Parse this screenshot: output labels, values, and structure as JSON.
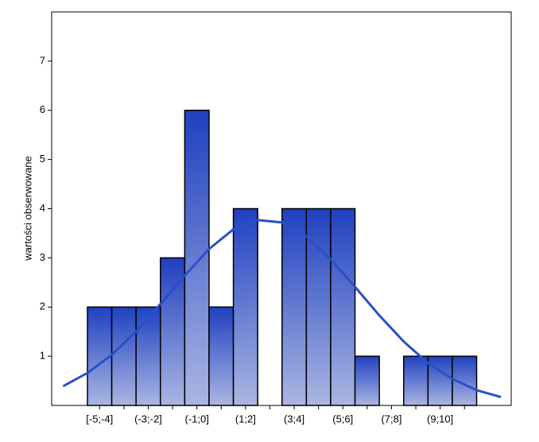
{
  "chart_data": {
    "type": "histogram",
    "ylabel": "wartości obserwowane",
    "bins": [
      -5,
      -4,
      -3,
      -2,
      -1,
      0,
      1,
      2,
      3,
      4,
      5,
      6,
      7,
      8,
      9,
      10,
      11
    ],
    "bin_labels": [
      "[-5;-4]",
      null,
      "(-3;-2]",
      null,
      "(-1;0]",
      null,
      "(1;2]",
      null,
      "(3;4]",
      null,
      "(5;6]",
      null,
      "(7;8]",
      null,
      "(9;10]",
      null
    ],
    "values": [
      2,
      2,
      2,
      3,
      6,
      2,
      4,
      0,
      4,
      4,
      4,
      1,
      0,
      1,
      1,
      1
    ],
    "color": "#1f40c0",
    "curve": {
      "color": "#2850c8",
      "x": [
        -6,
        -5,
        -4,
        -3,
        -2,
        -1,
        0,
        1,
        2,
        3,
        4,
        5,
        6,
        7,
        8,
        9,
        10,
        11,
        12
      ],
      "y": [
        0.39,
        0.66,
        1.03,
        1.5,
        2.06,
        2.64,
        3.18,
        3.58,
        3.77,
        3.72,
        3.44,
        2.97,
        2.41,
        1.83,
        1.3,
        0.86,
        0.54,
        0.31,
        0.17
      ]
    },
    "xlim": [
      -6.47,
      12.42
    ],
    "ylim": [
      0,
      8
    ],
    "yticks": [
      1,
      2,
      3,
      4,
      5,
      6,
      7
    ]
  }
}
